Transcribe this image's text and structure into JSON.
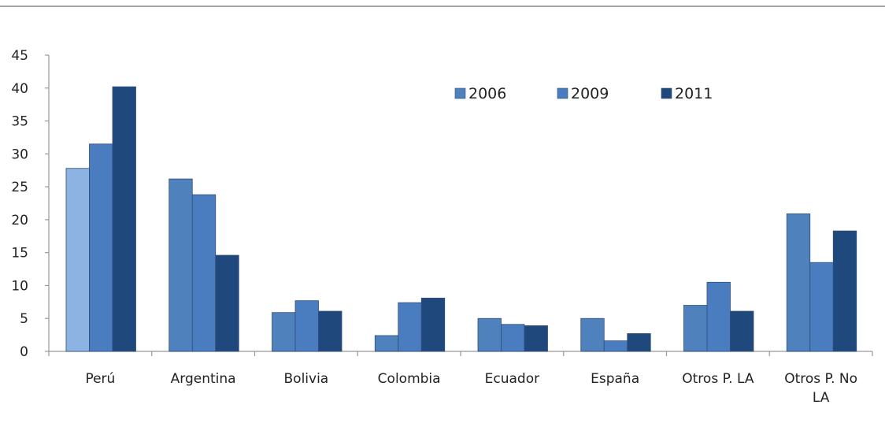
{
  "chart_data": {
    "type": "bar",
    "categories": [
      "Perú",
      "Argentina",
      "Bolivia",
      "Colombia",
      "Ecuador",
      "España",
      "Otros P. LA",
      "Otros P. No LA"
    ],
    "series": [
      {
        "name": "2006",
        "values": [
          27.8,
          26.2,
          5.9,
          2.4,
          5.0,
          5.0,
          7.0,
          20.9
        ]
      },
      {
        "name": "2009",
        "values": [
          31.5,
          23.8,
          7.7,
          7.4,
          4.1,
          1.6,
          10.5,
          13.5
        ]
      },
      {
        "name": "2011",
        "values": [
          40.2,
          14.6,
          6.1,
          8.1,
          3.9,
          2.7,
          6.1,
          18.3
        ]
      }
    ],
    "ylim": [
      0,
      45
    ],
    "yticks": [
      0,
      5,
      10,
      15,
      20,
      25,
      30,
      35,
      40,
      45
    ],
    "title": "",
    "xlabel": "",
    "ylabel": "",
    "legend_position": "top-right",
    "grid": false,
    "colors": {
      "series": [
        "#4f81bd",
        "#4a7cc0",
        "#1f497d"
      ],
      "peru_2006": "#8db3e2",
      "bar_edge": "#2f4f7a",
      "axis": "#999999",
      "top_rule": "#888888"
    }
  }
}
